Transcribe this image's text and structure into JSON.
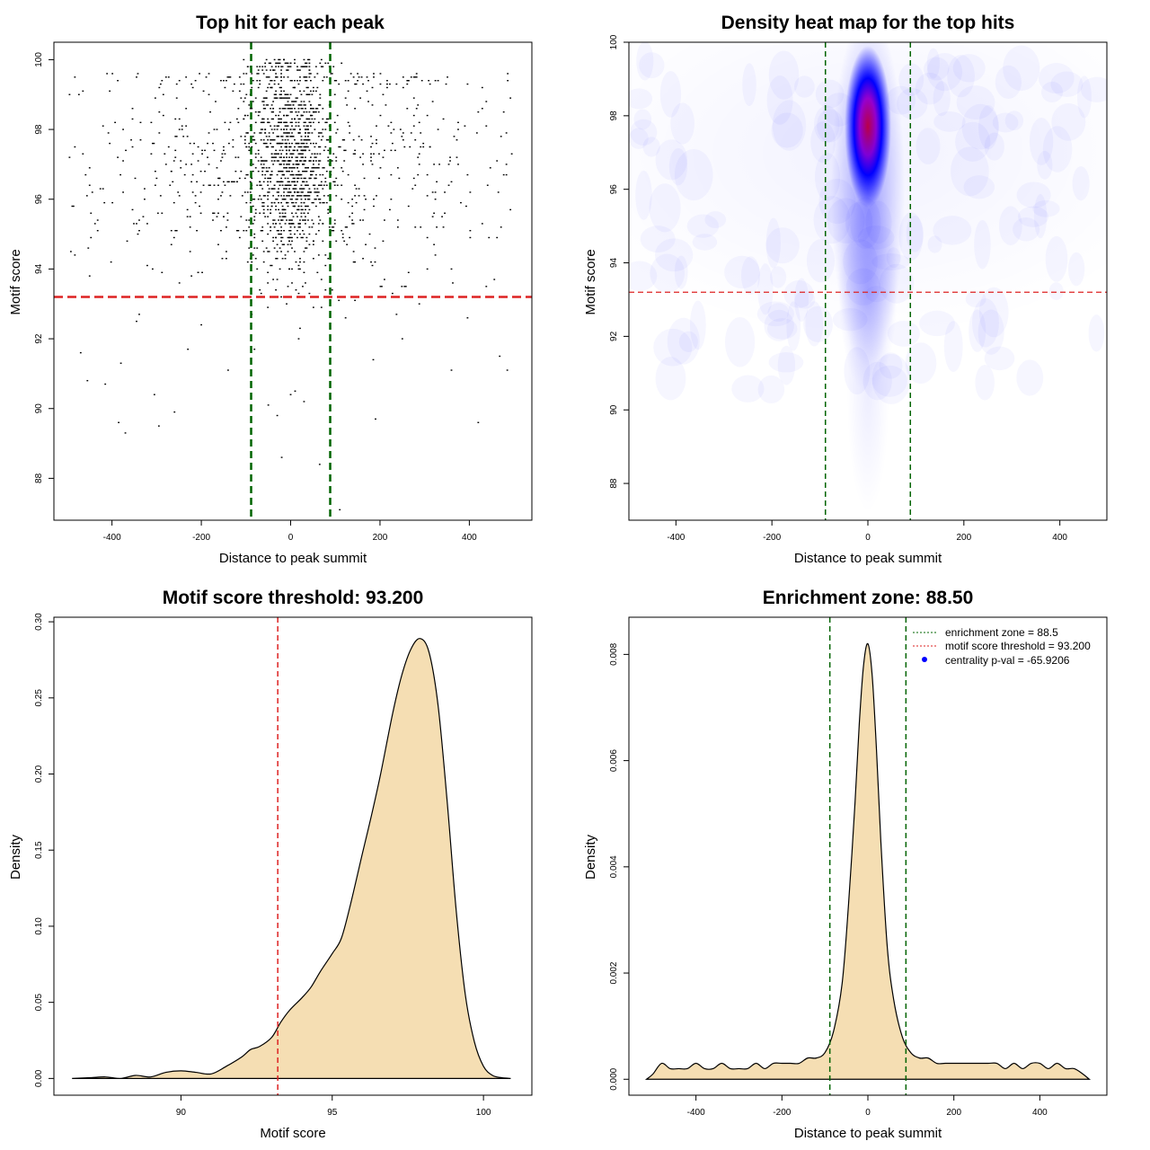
{
  "colors": {
    "vline": "#006400",
    "hline": "#dd2222",
    "density_fill": "#f5deb3",
    "points": "#000000",
    "heat_low": "#ffffff",
    "heat_mid": "#0000ff",
    "heat_high": "#ff0000",
    "legend_dot": "#0000ff"
  },
  "chart_data": [
    {
      "type": "scatter",
      "title": "Top hit for each peak",
      "xlabel": "Distance to peak summit",
      "ylabel": "Motif score",
      "xlim": [
        -530,
        540
      ],
      "ylim": [
        86.8,
        100.5
      ],
      "xticks": [
        -400,
        -200,
        0,
        200,
        400
      ],
      "yticks": [
        88,
        90,
        92,
        94,
        96,
        98,
        100
      ],
      "xtick_labels": [
        "-400",
        "-200",
        "0",
        "200",
        "400"
      ],
      "ytick_labels": [
        "88",
        "90",
        "92",
        "94",
        "96",
        "98",
        "100"
      ],
      "vlines": [
        -88.5,
        88.5
      ],
      "hline": 93.2,
      "grid": false,
      "clusters": [
        {
          "x_center": 0,
          "x_spread": 45,
          "y_center": 97.2,
          "y_spread": 1.6,
          "count": 1100,
          "y_min": 91.5,
          "y_max": 100
        },
        {
          "x_center": 0,
          "x_spread": 300,
          "y_center": 97.0,
          "y_spread": 1.9,
          "count": 800,
          "y_min": 91.0,
          "y_max": 99.6
        }
      ],
      "outliers": [
        {
          "x": -470,
          "y": 91.6
        },
        {
          "x": -455,
          "y": 90.8
        },
        {
          "x": -415,
          "y": 90.7
        },
        {
          "x": -385,
          "y": 89.6
        },
        {
          "x": -370,
          "y": 89.3
        },
        {
          "x": -305,
          "y": 90.4
        },
        {
          "x": -295,
          "y": 89.5
        },
        {
          "x": -260,
          "y": 89.9
        },
        {
          "x": -345,
          "y": 92.5
        },
        {
          "x": -230,
          "y": 91.7
        },
        {
          "x": -200,
          "y": 92.4
        },
        {
          "x": -140,
          "y": 91.1
        },
        {
          "x": -50,
          "y": 90.1
        },
        {
          "x": -30,
          "y": 89.8
        },
        {
          "x": -20,
          "y": 88.6
        },
        {
          "x": 0,
          "y": 90.4
        },
        {
          "x": 10,
          "y": 90.5
        },
        {
          "x": 30,
          "y": 90.2
        },
        {
          "x": 65,
          "y": 88.4
        },
        {
          "x": 110,
          "y": 87.1
        },
        {
          "x": 185,
          "y": 91.4
        },
        {
          "x": 190,
          "y": 89.7
        },
        {
          "x": 360,
          "y": 91.1
        },
        {
          "x": 420,
          "y": 89.6
        },
        {
          "x": 485,
          "y": 91.1
        },
        {
          "x": -380,
          "y": 91.3
        },
        {
          "x": 250,
          "y": 92.0
        }
      ]
    },
    {
      "type": "heatmap",
      "title": "Density heat map for the top hits",
      "xlabel": "Distance to peak summit",
      "ylabel": "Motif score",
      "xlim": [
        -498,
        498
      ],
      "ylim": [
        87.0,
        100.0
      ],
      "xticks": [
        -400,
        -200,
        0,
        200,
        400
      ],
      "yticks": [
        88,
        90,
        92,
        94,
        96,
        98,
        100
      ],
      "xtick_labels": [
        "-400",
        "-200",
        "0",
        "200",
        "400"
      ],
      "ytick_labels": [
        "88",
        "90",
        "92",
        "94",
        "96",
        "98",
        "100"
      ],
      "vlines": [
        -88.5,
        88.5
      ],
      "hline": 93.2,
      "grid": false,
      "blobs": [
        {
          "x": 0,
          "y": 97.7,
          "sx": 22,
          "sy": 1.0,
          "w": 1.0
        },
        {
          "x": 0,
          "y": 96.0,
          "sx": 35,
          "sy": 2.2,
          "w": 0.38
        },
        {
          "x": 0,
          "y": 93.3,
          "sx": 28,
          "sy": 1.3,
          "w": 0.2
        },
        {
          "x": 0,
          "y": 90.5,
          "sx": 20,
          "sy": 1.5,
          "w": 0.07
        },
        {
          "x": 0,
          "y": 97.0,
          "sx": 300,
          "sy": 2.3,
          "w": 0.05
        }
      ]
    },
    {
      "type": "area",
      "title": "Motif score threshold: 93.200",
      "xlabel": "Motif score",
      "ylabel": "Density",
      "xlim": [
        85.8,
        101.6
      ],
      "ylim": [
        -0.011,
        0.303
      ],
      "xticks": [
        90,
        95,
        100
      ],
      "yticks": [
        0.0,
        0.05,
        0.1,
        0.15,
        0.2,
        0.25,
        0.3
      ],
      "xtick_labels": [
        "90",
        "95",
        "100"
      ],
      "ytick_labels": [
        "0.00",
        "0.05",
        "0.10",
        "0.15",
        "0.20",
        "0.25",
        "0.30"
      ],
      "vline": 93.2,
      "grid": false,
      "x": [
        86.4,
        87.0,
        87.5,
        88.0,
        88.5,
        89.0,
        89.5,
        90.0,
        90.5,
        91.0,
        91.5,
        92.0,
        92.3,
        92.6,
        93.0,
        93.3,
        93.6,
        94.0,
        94.3,
        94.6,
        95.0,
        95.3,
        95.6,
        96.0,
        96.3,
        96.6,
        97.0,
        97.3,
        97.6,
        97.9,
        98.2,
        98.5,
        98.8,
        99.1,
        99.4,
        99.7,
        100.0,
        100.3,
        100.6,
        100.9
      ],
      "y": [
        0.0,
        0.0005,
        0.001,
        0.0,
        0.002,
        0.001,
        0.004,
        0.005,
        0.004,
        0.003,
        0.008,
        0.014,
        0.019,
        0.021,
        0.027,
        0.037,
        0.045,
        0.053,
        0.06,
        0.07,
        0.082,
        0.092,
        0.114,
        0.148,
        0.173,
        0.2,
        0.24,
        0.265,
        0.282,
        0.289,
        0.28,
        0.245,
        0.182,
        0.11,
        0.055,
        0.024,
        0.008,
        0.002,
        0.0005,
        0.0
      ]
    },
    {
      "type": "area",
      "title": "Enrichment zone: 88.50",
      "xlabel": "Distance to peak summit",
      "ylabel": "Density",
      "xlim": [
        -556,
        556
      ],
      "ylim": [
        -0.0003,
        0.0087
      ],
      "xticks": [
        -400,
        -200,
        0,
        200,
        400
      ],
      "yticks": [
        0.0,
        0.002,
        0.004,
        0.006,
        0.008
      ],
      "xtick_labels": [
        "-400",
        "-200",
        "0",
        "200",
        "400"
      ],
      "ytick_labels": [
        "0.000",
        "0.002",
        "0.004",
        "0.006",
        "0.008"
      ],
      "vlines": [
        -88.5,
        88.5
      ],
      "grid": false,
      "legend_position": "top-right",
      "legend": [
        "enrichment zone = 88.5",
        "motif score threshold = 93.200",
        "centrality p-val = -65.9206"
      ],
      "x": [
        -515,
        -500,
        -480,
        -460,
        -440,
        -420,
        -400,
        -380,
        -360,
        -340,
        -320,
        -300,
        -280,
        -260,
        -240,
        -220,
        -200,
        -180,
        -160,
        -140,
        -120,
        -100,
        -80,
        -60,
        -45,
        -30,
        -20,
        -10,
        0,
        10,
        20,
        30,
        45,
        60,
        80,
        100,
        120,
        140,
        160,
        180,
        200,
        220,
        240,
        260,
        280,
        300,
        320,
        340,
        360,
        380,
        400,
        420,
        440,
        460,
        480,
        500,
        515
      ],
      "y": [
        0.0,
        0.0001,
        0.0003,
        0.0002,
        0.0002,
        0.0002,
        0.0003,
        0.0002,
        0.0002,
        0.0003,
        0.0002,
        0.0002,
        0.0002,
        0.0003,
        0.0002,
        0.0003,
        0.0003,
        0.0003,
        0.0003,
        0.0004,
        0.0004,
        0.0005,
        0.0009,
        0.0018,
        0.0033,
        0.0052,
        0.0067,
        0.0078,
        0.0082,
        0.0076,
        0.0062,
        0.0045,
        0.0025,
        0.0015,
        0.0008,
        0.0005,
        0.0004,
        0.0004,
        0.0003,
        0.0003,
        0.0003,
        0.0003,
        0.0003,
        0.0003,
        0.0003,
        0.0003,
        0.0002,
        0.0003,
        0.0002,
        0.0003,
        0.0003,
        0.0002,
        0.0003,
        0.0002,
        0.0002,
        0.0001,
        0.0
      ]
    }
  ]
}
